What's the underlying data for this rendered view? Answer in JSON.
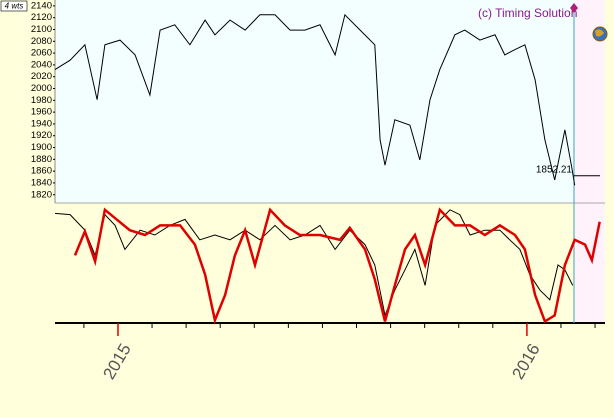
{
  "chart_data": {
    "type": "line",
    "badge": "4 wts",
    "watermark": "(c) Timing Solution",
    "last_value": 1852.21,
    "xlim": [
      2014.846,
      2016.191
    ],
    "xticks": [
      {
        "value": 2015,
        "label": "2015"
      },
      {
        "value": 2016,
        "label": "2016"
      }
    ],
    "ylim": [
      1806,
      2150
    ],
    "yticks": [
      1820,
      1840,
      1860,
      1880,
      1900,
      1920,
      1940,
      1960,
      1980,
      2000,
      2020,
      2040,
      2060,
      2080,
      2100,
      2120,
      2140
    ],
    "y2lim": [
      0,
      100
    ],
    "series": [
      {
        "color": "#000000",
        "x": [
          2014.846,
          2014.883,
          2014.919,
          2014.949,
          2014.968,
          2015.005,
          2015.042,
          2015.078,
          2015.103,
          2015.139,
          2015.176,
          2015.213,
          2015.237,
          2015.274,
          2015.311,
          2015.347,
          2015.384,
          2015.421,
          2015.457,
          2015.494,
          2015.531,
          2015.555,
          2015.592,
          2015.628,
          2015.641,
          2015.653,
          2015.677,
          2015.714,
          2015.738,
          2015.763,
          2015.787,
          2015.824,
          2015.848,
          2015.885,
          2015.922,
          2015.946,
          2015.971,
          2015.995,
          2016.02,
          2016.044,
          2016.068,
          2016.093,
          2016.11,
          2016.117
        ],
        "values": [
          2032,
          2048,
          2074,
          1981,
          2074,
          2082,
          2057,
          1989,
          2099,
          2108,
          2074,
          2116,
          2091,
          2116,
          2099,
          2125,
          2125,
          2099,
          2099,
          2108,
          2057,
          2125,
          2099,
          2074,
          1913,
          1870,
          1947,
          1938,
          1879,
          1981,
          2032,
          2091,
          2099,
          2082,
          2091,
          2057,
          2066,
          2074,
          2015,
          1913,
          1845,
          1930,
          1865,
          1836
        ]
      },
      {
        "color": "#000000",
        "axis": "y2",
        "x": [
          2014.846,
          2014.883,
          2014.919,
          2014.944,
          2014.968,
          2014.993,
          2015.017,
          2015.054,
          2015.09,
          2015.127,
          2015.164,
          2015.2,
          2015.237,
          2015.274,
          2015.311,
          2015.347,
          2015.384,
          2015.421,
          2015.457,
          2015.494,
          2015.531,
          2015.567,
          2015.604,
          2015.628,
          2015.653,
          2015.677,
          2015.702,
          2015.726,
          2015.751,
          2015.775,
          2015.812,
          2015.836,
          2015.861,
          2015.897,
          2015.934,
          2015.958,
          2015.983,
          2016.007,
          2016.032,
          2016.056,
          2016.076,
          2016.093,
          2016.112
        ],
        "values": [
          93,
          92,
          79,
          58,
          92,
          83,
          63,
          79,
          75,
          83,
          88,
          71,
          75,
          71,
          79,
          71,
          83,
          71,
          75,
          83,
          63,
          79,
          67,
          50,
          8,
          29,
          46,
          63,
          33,
          83,
          96,
          92,
          75,
          79,
          79,
          71,
          63,
          42,
          29,
          21,
          50,
          46,
          33
        ]
      },
      {
        "color": "#e00000",
        "axis": "y2",
        "x": [
          2014.895,
          2014.919,
          2014.944,
          2014.968,
          2014.993,
          2015.029,
          2015.066,
          2015.103,
          2015.152,
          2015.188,
          2015.213,
          2015.237,
          2015.262,
          2015.286,
          2015.311,
          2015.335,
          2015.372,
          2015.408,
          2015.445,
          2015.494,
          2015.543,
          2015.567,
          2015.604,
          2015.628,
          2015.653,
          2015.677,
          2015.702,
          2015.726,
          2015.751,
          2015.787,
          2015.824,
          2015.861,
          2015.897,
          2015.934,
          2015.971,
          2015.995,
          2016.02,
          2016.044,
          2016.068,
          2016.093,
          2016.117,
          2016.142,
          2016.159,
          2016.178
        ],
        "values": [
          58,
          78,
          53,
          96,
          89,
          79,
          75,
          83,
          83,
          67,
          42,
          4,
          25,
          58,
          79,
          50,
          96,
          83,
          75,
          75,
          71,
          81,
          63,
          38,
          3,
          33,
          63,
          75,
          50,
          96,
          83,
          83,
          75,
          83,
          75,
          63,
          25,
          3,
          8,
          50,
          71,
          67,
          54,
          86
        ]
      }
    ]
  }
}
